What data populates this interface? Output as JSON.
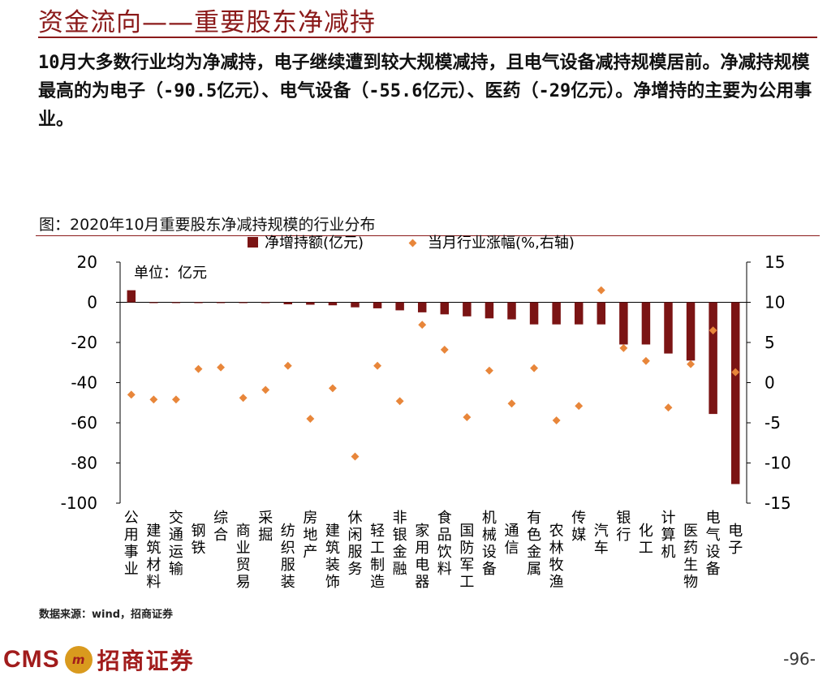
{
  "header": {
    "title": "资金流向——重要股东净减持",
    "summary": "10月大多数行业均为净减持，电子继续遭到较大规模减持，且电气设备减持规模居前。净减持规模最高的为电子（-90.5亿元）、电气设备（-55.6亿元）、医药（-29亿元）。净增持的主要为公用事业。"
  },
  "figure": {
    "title": "图：2020年10月重要股东净减持规模的行业分布",
    "unit_label": "单位：亿元",
    "source": "数据来源：wind，招商证券"
  },
  "footer": {
    "logo_text": "CMS",
    "logo_mark": "m",
    "logo_cn": "招商证券",
    "page_number": "-96-"
  },
  "colors": {
    "bar": "#7b1414",
    "dot": "#e8863a",
    "title": "#8b1a1a"
  },
  "chart_data": {
    "type": "bar",
    "categories": [
      "公用事业",
      "建筑材料",
      "交通运输",
      "钢铁",
      "综合",
      "商业贸易",
      "采掘",
      "纺织服装",
      "房地产",
      "建筑装饰",
      "休闲服务",
      "轻工制造",
      "非银金融",
      "家用电器",
      "食品饮料",
      "国防军工",
      "机械设备",
      "通信",
      "有色金属",
      "农林牧渔",
      "传媒",
      "汽车",
      "银行",
      "化工",
      "计算机",
      "医药生物",
      "电气设备",
      "电子"
    ],
    "series": [
      {
        "name": "净增持额(亿元)",
        "axis": "left",
        "kind": "bar",
        "values": [
          6.0,
          -0.2,
          -0.3,
          -0.3,
          -0.3,
          -0.4,
          -0.4,
          -1.0,
          -1.2,
          -1.5,
          -2.5,
          -3.0,
          -4.0,
          -5.0,
          -6.0,
          -7.0,
          -8.0,
          -8.5,
          -11.0,
          -11.0,
          -11.0,
          -11.0,
          -21.0,
          -21.0,
          -25.5,
          -29.0,
          -55.6,
          -90.5
        ]
      },
      {
        "name": "当月行业涨幅(%,右轴)",
        "axis": "right",
        "kind": "scatter",
        "values": [
          -1.5,
          -2.1,
          -2.1,
          1.7,
          1.9,
          -1.9,
          -0.9,
          2.1,
          -4.5,
          -0.7,
          -9.2,
          2.1,
          -2.3,
          7.2,
          4.1,
          -4.3,
          1.5,
          -2.6,
          1.8,
          -4.7,
          -2.9,
          11.5,
          4.3,
          2.7,
          -3.1,
          2.3,
          6.5,
          1.3
        ]
      }
    ],
    "ylim_left": [
      -100,
      20
    ],
    "ylim_right": [
      -15,
      15
    ],
    "yticks_left": [
      "20",
      "0",
      "-20",
      "-40",
      "-60",
      "-80",
      "-100"
    ],
    "yticks_right": [
      "15",
      "10",
      "5",
      "0",
      "-5",
      "-10",
      "-15"
    ],
    "legend_position": "top-center",
    "grid": false
  }
}
